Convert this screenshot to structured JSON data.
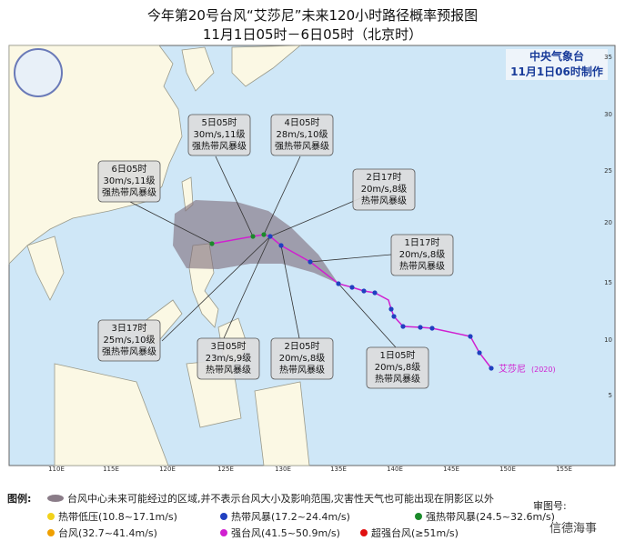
{
  "header": {
    "title": "今年第20号台风“艾莎尼”未来120小时路径概率预报图",
    "subtitle": "11月1日05时－6日05时（北京时）",
    "agency": "中央气象台",
    "issued": "11月1日06时制作"
  },
  "map": {
    "lon_labels": [
      "110E",
      "115E",
      "120E",
      "125E",
      "130E",
      "135E",
      "140E",
      "145E",
      "150E",
      "155E"
    ],
    "lat_labels": [
      "35",
      "30",
      "25",
      "20",
      "15",
      "10",
      "5"
    ],
    "storm_label": "艾莎尼",
    "storm_id": "(2020)",
    "callouts": [
      {
        "time": "5日05时",
        "wind": "30m/s,11级",
        "grade": "强热带风暴级"
      },
      {
        "time": "4日05时",
        "wind": "28m/s,10级",
        "grade": "强热带风暴级"
      },
      {
        "time": "6日05时",
        "wind": "30m/s,11级",
        "grade": "强热带风暴级"
      },
      {
        "time": "2日17时",
        "wind": "20m/s,8级",
        "grade": "热带风暴级"
      },
      {
        "time": "1日17时",
        "wind": "20m/s,8级",
        "grade": "热带风暴级"
      },
      {
        "time": "3日17时",
        "wind": "25m/s,10级",
        "grade": "强热带风暴级"
      },
      {
        "time": "3日05时",
        "wind": "23m/s,9级",
        "grade": "热带风暴级"
      },
      {
        "time": "2日05时",
        "wind": "20m/s,8级",
        "grade": "热带风暴级"
      },
      {
        "time": "1日05时",
        "wind": "20m/s,8级",
        "grade": "热带风暴级"
      }
    ]
  },
  "legend": {
    "title": "图例:",
    "cone": "台风中心未来可能经过的区域,并不表示台风大小及影响范围,灾害性天气也可能出现在阴影区以外",
    "items": [
      {
        "label": "热带低压(10.8~17.1m/s)",
        "color": "#f2d21b"
      },
      {
        "label": "热带风暴(17.2~24.4m/s)",
        "color": "#2040c0"
      },
      {
        "label": "强热带风暴(24.5~32.6m/s)",
        "color": "#1a8a2a"
      },
      {
        "label": "台风(32.7~41.4m/s)",
        "color": "#f0a000"
      },
      {
        "label": "强台风(41.5~50.9m/s)",
        "color": "#d020d0"
      },
      {
        "label": "超强台风(≥51m/s)",
        "color": "#e01010"
      }
    ],
    "approval": "审图号:",
    "watermark": "信德海事"
  }
}
